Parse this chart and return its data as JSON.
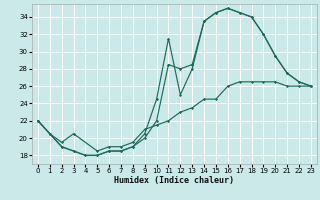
{
  "xlabel": "Humidex (Indice chaleur)",
  "xlim": [
    -0.5,
    23.5
  ],
  "ylim": [
    17.0,
    35.5
  ],
  "yticks": [
    18,
    20,
    22,
    24,
    26,
    28,
    30,
    32,
    34
  ],
  "xticks": [
    0,
    1,
    2,
    3,
    4,
    5,
    6,
    7,
    8,
    9,
    10,
    11,
    12,
    13,
    14,
    15,
    16,
    17,
    18,
    19,
    20,
    21,
    22,
    23
  ],
  "bg_color": "#cce9e9",
  "grid_color": "#ffffff",
  "line_color": "#1a6b5a",
  "line1_x": [
    0,
    1,
    2,
    3,
    4,
    5,
    6,
    7,
    8,
    9,
    10,
    11,
    12,
    13,
    14,
    15,
    16,
    17,
    18,
    19,
    20,
    21,
    22,
    23
  ],
  "line1_y": [
    22,
    20.5,
    19,
    18.5,
    18,
    18,
    18.5,
    18.5,
    19.0,
    20.0,
    22.0,
    28.5,
    28.0,
    28.5,
    33.5,
    34.5,
    35.0,
    34.5,
    34.0,
    32.0,
    29.5,
    27.5,
    26.5,
    26.0
  ],
  "line2_x": [
    0,
    1,
    2,
    3,
    4,
    5,
    6,
    7,
    8,
    9,
    10,
    11,
    12,
    13,
    14,
    15,
    16,
    17,
    18,
    19,
    20,
    21,
    22,
    23
  ],
  "line2_y": [
    22,
    20.5,
    19,
    18.5,
    18,
    18,
    18.5,
    18.5,
    19.0,
    20.5,
    24.5,
    31.5,
    25.0,
    28.0,
    33.5,
    34.5,
    35.0,
    34.5,
    34.0,
    32.0,
    29.5,
    27.5,
    26.5,
    26.0
  ],
  "line3_x": [
    0,
    1,
    2,
    3,
    5,
    6,
    7,
    8,
    9,
    10,
    11,
    12,
    13,
    14,
    15,
    16,
    17,
    18,
    19,
    20,
    21,
    22,
    23
  ],
  "line3_y": [
    22,
    20.5,
    19.5,
    20.5,
    18.5,
    19.0,
    19.0,
    19.5,
    21.0,
    21.5,
    22.0,
    23.0,
    23.5,
    24.5,
    24.5,
    26.0,
    26.5,
    26.5,
    26.5,
    26.5,
    26.0,
    26.0,
    26.0
  ]
}
